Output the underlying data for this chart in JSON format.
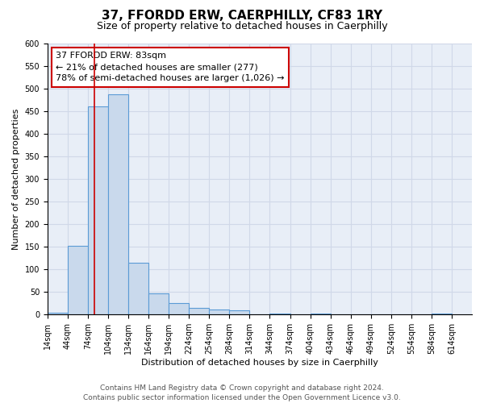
{
  "title": "37, FFORDD ERW, CAERPHILLY, CF83 1RY",
  "subtitle": "Size of property relative to detached houses in Caerphilly",
  "xlabel": "Distribution of detached houses by size in Caerphilly",
  "ylabel": "Number of detached properties",
  "bin_edges": [
    14,
    44,
    74,
    104,
    134,
    164,
    194,
    224,
    254,
    284,
    314,
    344,
    374,
    404,
    434,
    464,
    494,
    524,
    554,
    584,
    614
  ],
  "bar_heights": [
    5,
    153,
    460,
    487,
    115,
    47,
    25,
    14,
    12,
    10,
    0,
    2,
    0,
    3,
    0,
    0,
    0,
    0,
    0,
    2
  ],
  "bar_color": "#c9d9ec",
  "bar_edgecolor": "#5b9bd5",
  "grid_color": "#d0d8e8",
  "background_color": "#e8eef7",
  "vline_x": 83,
  "vline_color": "#cc0000",
  "annotation_line1": "37 FFORDD ERW: 83sqm",
  "annotation_line2": "← 21% of detached houses are smaller (277)",
  "annotation_line3": "78% of semi-detached houses are larger (1,026) →",
  "annotation_fontsize": 8,
  "box_edgecolor": "#cc0000",
  "ylim": [
    0,
    600
  ],
  "yticks": [
    0,
    50,
    100,
    150,
    200,
    250,
    300,
    350,
    400,
    450,
    500,
    550,
    600
  ],
  "footer_line1": "Contains HM Land Registry data © Crown copyright and database right 2024.",
  "footer_line2": "Contains public sector information licensed under the Open Government Licence v3.0.",
  "title_fontsize": 11,
  "subtitle_fontsize": 9,
  "axis_label_fontsize": 8,
  "tick_fontsize": 7,
  "footer_fontsize": 6.5
}
